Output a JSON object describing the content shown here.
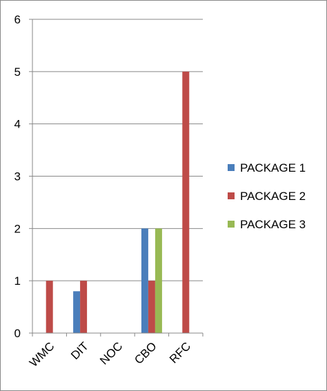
{
  "chart_data": {
    "type": "bar",
    "categories": [
      "WMC",
      "DIT",
      "NOC",
      "CBO",
      "RFC"
    ],
    "series": [
      {
        "name": "PACKAGE 1",
        "color": "#4A7EBB",
        "values": [
          0,
          0.8,
          0,
          2,
          0
        ]
      },
      {
        "name": "PACKAGE 2",
        "color": "#BE4B48",
        "values": [
          1,
          1,
          0,
          1,
          5
        ]
      },
      {
        "name": "PACKAGE 3",
        "color": "#98B954",
        "values": [
          0,
          0,
          0,
          2,
          0
        ]
      }
    ],
    "ylim": [
      0,
      6
    ],
    "yticks": [
      0,
      1,
      2,
      3,
      4,
      5,
      6
    ],
    "grid": true,
    "legend": "right",
    "title": "",
    "xlabel": "",
    "ylabel": ""
  }
}
